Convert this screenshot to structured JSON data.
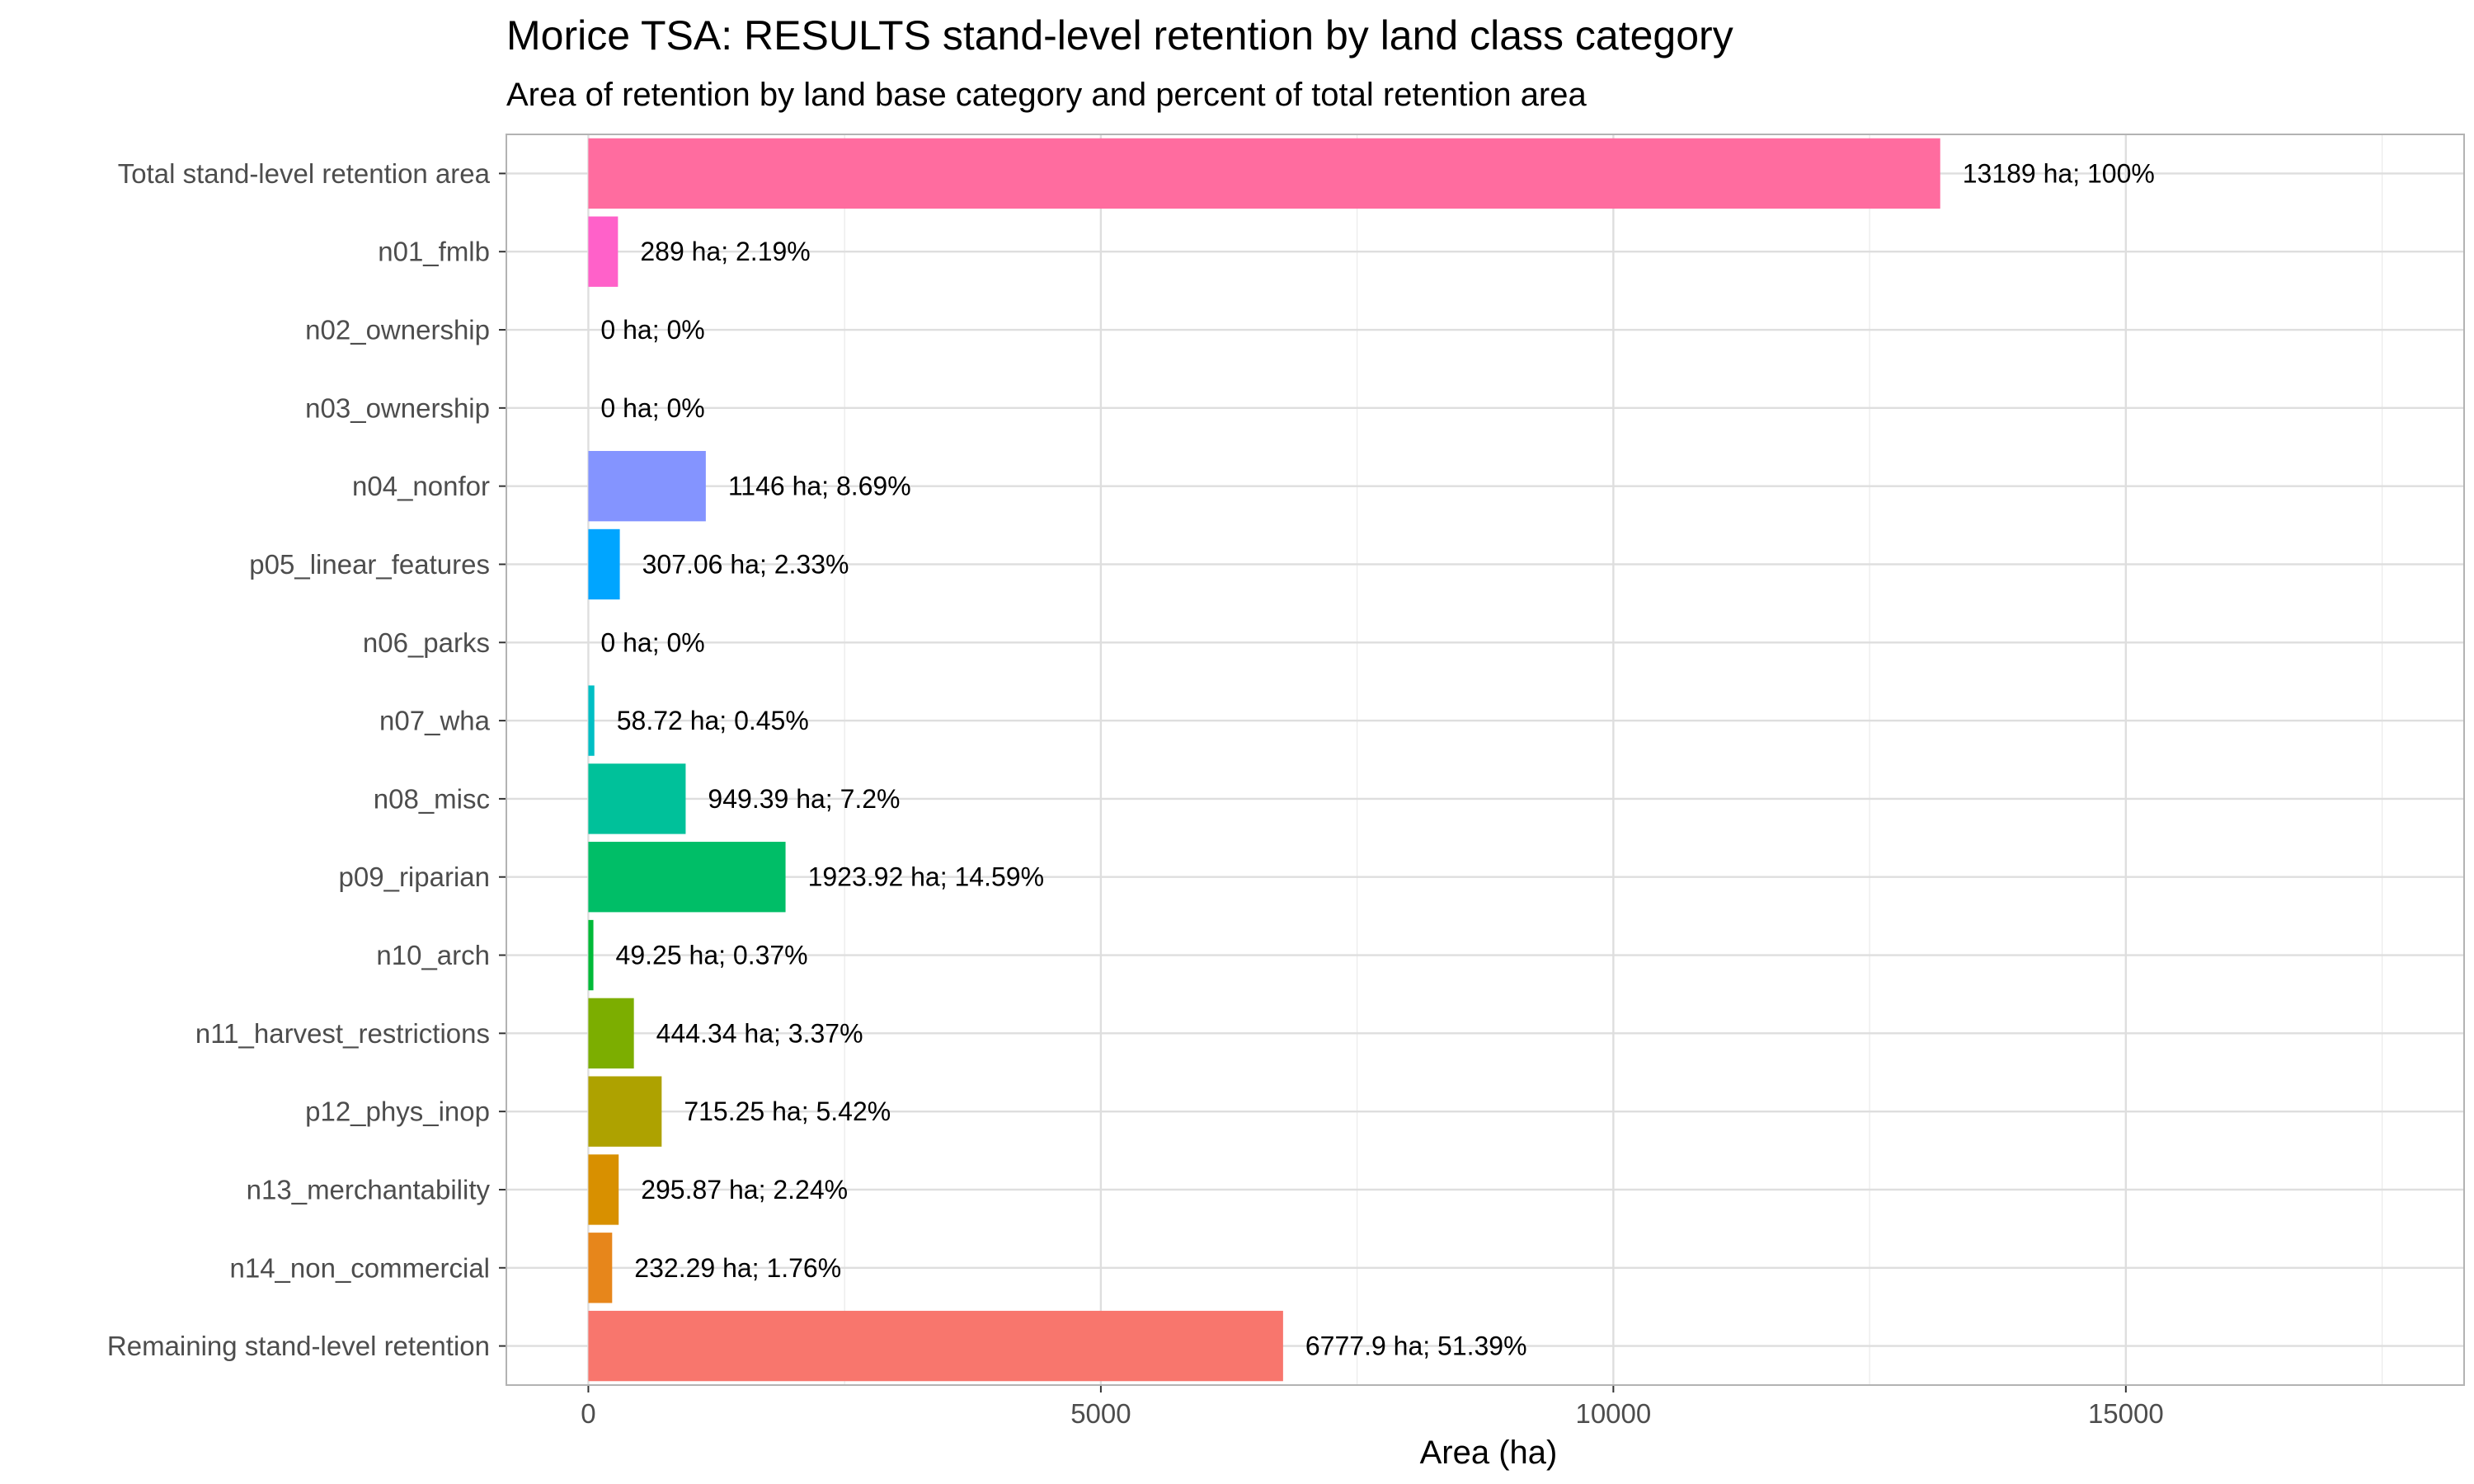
{
  "chart_data": {
    "type": "bar",
    "orientation": "horizontal",
    "title": "Morice TSA: RESULTS stand-level retention by land class category",
    "subtitle": "Area of retention by land base category and percent of total retention area",
    "xlabel": "Area (ha)",
    "ylabel": "",
    "xlim": [
      -800,
      18300
    ],
    "x_ticks": [
      0,
      5000,
      10000,
      15000
    ],
    "x_tick_labels": [
      "0",
      "5000",
      "10000",
      "15000"
    ],
    "grid": true,
    "legend": "none",
    "categories": [
      "Total stand-level retention area",
      "n01_fmlb",
      "n02_ownership",
      "n03_ownership",
      "n04_nonfor",
      "p05_linear_features",
      "n06_parks",
      "n07_wha",
      "n08_misc",
      "p09_riparian",
      "n10_arch",
      "n11_harvest_restrictions",
      "p12_phys_inop",
      "n13_merchantability",
      "n14_non_commercial",
      "Remaining stand-level retention"
    ],
    "values": [
      13189,
      289,
      0,
      0,
      1146,
      307.06,
      0,
      58.72,
      949.39,
      1923.92,
      49.25,
      444.34,
      715.25,
      295.87,
      232.29,
      6777.9
    ],
    "data_labels": [
      "13189 ha; 100%",
      "289 ha; 2.19%",
      "0 ha; 0%",
      "0 ha; 0%",
      "1146 ha; 8.69%",
      "307.06 ha; 2.33%",
      "0 ha; 0%",
      "58.72 ha; 0.45%",
      "949.39 ha; 7.2%",
      "1923.92 ha; 14.59%",
      "49.25 ha; 0.37%",
      "444.34 ha; 3.37%",
      "715.25 ha; 5.42%",
      "295.87 ha; 2.24%",
      "232.29 ha; 1.76%",
      "6777.9 ha; 51.39%"
    ],
    "colors": [
      "#FF6C9F",
      "#FF61C9",
      "#F564E3",
      "#DB72FB",
      "#8494FF",
      "#00A5FF",
      "#00B8E7",
      "#00BFC4",
      "#00C19A",
      "#00BE67",
      "#00BA38",
      "#7CAE00",
      "#AEA200",
      "#D89000",
      "#E7861B",
      "#F8766D"
    ]
  }
}
